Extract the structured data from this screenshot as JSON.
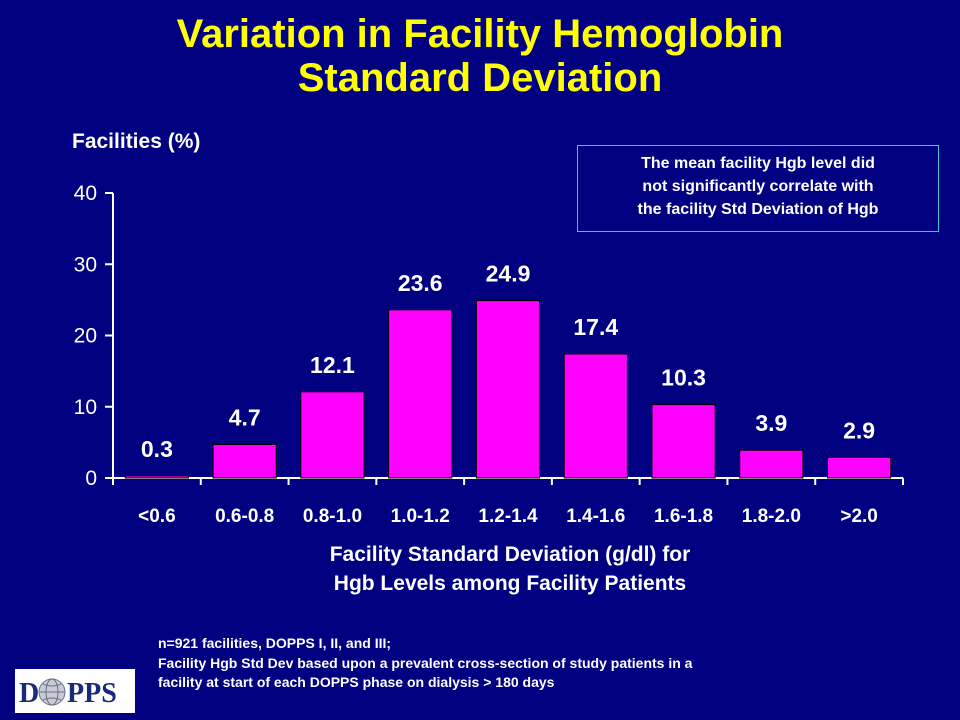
{
  "slide": {
    "title_line1": "Variation in Facility Hemoglobin",
    "title_line2": "Standard Deviation",
    "note_line1": "The mean facility Hgb level did",
    "note_line2": "not significantly correlate with",
    "note_line3": "the facility Std Deviation of Hgb",
    "footnote_line1": "n=921 facilities, DOPPS I, II, and III;",
    "footnote_line2": "Facility Hgb Std Dev based upon a prevalent cross-section of study patients in a",
    "footnote_line3": "facility at start of each DOPPS phase on dialysis > 180 days",
    "logo_text": "DOPPS",
    "logo_letter_d": "D",
    "logo_letters_pps": "PPS"
  },
  "chart_data": {
    "type": "bar",
    "title": "Variation in Facility Hemoglobin Standard Deviation",
    "ylabel": "Facilities (%)",
    "xlabel_line1": "Facility Standard Deviation (g/dl) for",
    "xlabel_line2": "Hgb Levels among Facility Patients",
    "categories": [
      "<0.6",
      "0.6-0.8",
      "0.8-1.0",
      "1.0-1.2",
      "1.2-1.4",
      "1.4-1.6",
      "1.6-1.8",
      "1.8-2.0",
      ">2.0"
    ],
    "values": [
      0.3,
      4.7,
      12.1,
      23.6,
      24.9,
      17.4,
      10.3,
      3.9,
      2.9
    ],
    "value_labels": [
      "0.3",
      "4.7",
      "12.1",
      "23.6",
      "24.9",
      "17.4",
      "10.3",
      "3.9",
      "2.9"
    ],
    "yticks": [
      "0",
      "10",
      "20",
      "30",
      "40"
    ],
    "ylim": [
      0,
      40
    ],
    "grid": false,
    "legend": "none",
    "bar_color": "#FF00FF",
    "axis_color": "#FFFFFF",
    "title_color": "#FFFF00",
    "background_color": "#000080"
  }
}
